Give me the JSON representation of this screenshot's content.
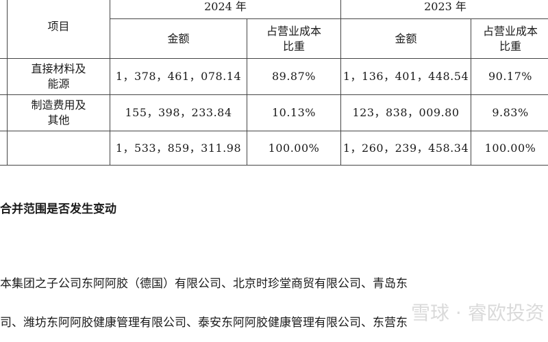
{
  "table": {
    "header": {
      "item": "项目",
      "year_2024": "2024 年",
      "year_2023": "2023 年",
      "amount": "金额",
      "ratio_line1": "占营业成本",
      "ratio_line2": "比重"
    },
    "rows": [
      {
        "item_line1": "直接材料及",
        "item_line2": "能源",
        "amount_2024": "1，378，461，078.14",
        "ratio_2024": "89.87%",
        "amount_2023": "1，136，401，448.54",
        "ratio_2023": "90.17%"
      },
      {
        "item_line1": "制造费用及",
        "item_line2": "其他",
        "amount_2024": "155，398，233.84",
        "ratio_2024": "10.13%",
        "amount_2023": "123，838，009.80",
        "ratio_2023": "9.83%"
      },
      {
        "item_line1": "",
        "item_line2": "",
        "amount_2024": "1，533，859，311.98",
        "ratio_2024": "100.00%",
        "amount_2023": "1，260，239，458.34",
        "ratio_2023": "100.00%"
      }
    ]
  },
  "section_heading": "合并范围是否发生变动",
  "paragraph_line1": "本集团之子公司东阿阿胶（德国）有限公司、北京时珍堂商贸有限公司、青岛东",
  "paragraph_line2": "司、潍坊东阿阿胶健康管理有限公司、泰安东阿阿胶健康管理有限公司、东营东",
  "watermark": "雪球 · 睿欧投资"
}
